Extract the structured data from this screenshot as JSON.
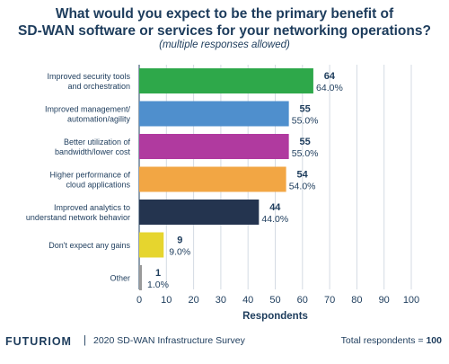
{
  "header": {
    "title_line1": "What would you expect to be the primary benefit of",
    "title_line2": "SD-WAN software or services for your networking operations?",
    "subtitle": "(multiple responses allowed)"
  },
  "footer": {
    "brand": "FUTURIOM",
    "separator": "|",
    "source": "2020 SD-WAN Infrastructure Survey",
    "total_label": "Total respondents = ",
    "total_value": "100"
  },
  "chart_data": {
    "type": "bar",
    "orientation": "horizontal",
    "categories": [
      [
        "Improved security tools",
        "and orchestration"
      ],
      [
        "Improved management/",
        "automation/agility"
      ],
      [
        "Better utilization of",
        "bandwidth/lower cost"
      ],
      [
        "Higher performance of",
        "cloud applications"
      ],
      [
        "Improved analytics to",
        "understand network behavior"
      ],
      [
        "Don't expect any gains"
      ],
      [
        "Other"
      ]
    ],
    "values": [
      64,
      55,
      55,
      54,
      44,
      9,
      1
    ],
    "percent_labels": [
      "64.0%",
      "55.0%",
      "55.0%",
      "54.0%",
      "44.0%",
      "9.0%",
      "1.0%"
    ],
    "colors": [
      "#2ea84a",
      "#4f8fcd",
      "#b03a9f",
      "#f2a644",
      "#24344f",
      "#e6d52e",
      "#9a9a9a"
    ],
    "xlabel": "Respondents",
    "xlim": [
      0,
      100
    ],
    "xticks": [
      0,
      10,
      20,
      30,
      40,
      50,
      60,
      70,
      80,
      90,
      100
    ],
    "grid": true
  }
}
